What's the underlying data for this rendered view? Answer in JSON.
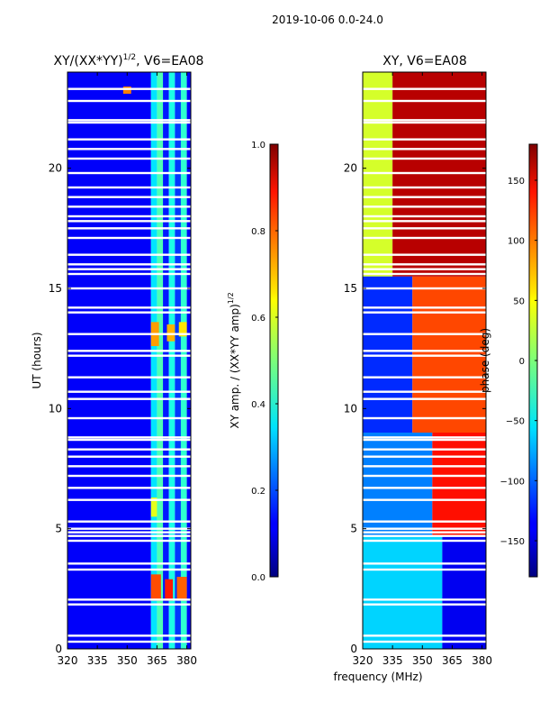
{
  "figure": {
    "suptitle": "2019-10-06 0.0-24.0",
    "xlabel": "frequency (MHz)"
  },
  "chart_data": [
    {
      "type": "heatmap",
      "title_main": "XY/(XX*YY)",
      "title_sup": "1/2",
      "title_tail": ", V6=EA08",
      "ylabel": "UT (hours)",
      "x_range": [
        320,
        382
      ],
      "y_range": [
        0,
        24
      ],
      "x_ticks": [
        320,
        335,
        350,
        365,
        380
      ],
      "y_ticks": [
        0,
        5,
        10,
        15,
        20
      ],
      "colorbar": {
        "label_main": "XY amp. / (XX*YY amp)",
        "label_sup": "1/2",
        "range": [
          0.0,
          1.0
        ],
        "ticks": [
          "0.0",
          "0.2",
          "0.4",
          "0.6",
          "0.8",
          "1.0"
        ],
        "tick_values": [
          0.0,
          0.2,
          0.4,
          0.6,
          0.8,
          1.0
        ]
      },
      "bands": [
        {
          "f0": 320,
          "f1": 362,
          "value": 0.12
        },
        {
          "f0": 362,
          "f1": 365,
          "value": 0.35
        },
        {
          "f0": 365,
          "f1": 368,
          "value": 0.45
        },
        {
          "f0": 368,
          "f1": 371,
          "value": 0.15
        },
        {
          "f0": 371,
          "f1": 374,
          "value": 0.4
        },
        {
          "f0": 374,
          "f1": 377,
          "value": 0.18
        },
        {
          "f0": 377,
          "f1": 380,
          "value": 0.42
        },
        {
          "f0": 380,
          "f1": 382,
          "value": 0.12
        }
      ],
      "hot_spots": [
        {
          "f0": 362,
          "f1": 367,
          "t0": 2.0,
          "t1": 3.1,
          "value": 0.8
        },
        {
          "f0": 369,
          "f1": 373,
          "t0": 2.0,
          "t1": 2.9,
          "value": 0.85
        },
        {
          "f0": 375,
          "f1": 380,
          "t0": 2.0,
          "t1": 3.0,
          "value": 0.78
        },
        {
          "f0": 362,
          "f1": 366,
          "t0": 12.6,
          "t1": 13.6,
          "value": 0.72
        },
        {
          "f0": 370,
          "f1": 374,
          "t0": 12.8,
          "t1": 13.5,
          "value": 0.7
        },
        {
          "f0": 376,
          "f1": 380,
          "t0": 13.0,
          "t1": 13.6,
          "value": 0.65
        },
        {
          "f0": 362,
          "f1": 365,
          "t0": 5.5,
          "t1": 6.3,
          "value": 0.6
        },
        {
          "f0": 348,
          "f1": 352,
          "t0": 23.1,
          "t1": 23.4,
          "value": 0.75
        }
      ]
    },
    {
      "type": "heatmap",
      "title": "XY, V6=EA08",
      "ylabel": "",
      "x_range": [
        320,
        382
      ],
      "y_range": [
        0,
        24
      ],
      "x_ticks": [
        320,
        335,
        350,
        365,
        380
      ],
      "y_ticks": [
        0,
        5,
        10,
        15,
        20
      ],
      "colorbar": {
        "label": "phase (deg)",
        "range": [
          -180,
          180
        ],
        "ticks": [
          "−150",
          "−100",
          "−50",
          "0",
          "50",
          "100",
          "150"
        ],
        "tick_values": [
          -150,
          -100,
          -50,
          0,
          50,
          100,
          150
        ]
      },
      "regions": [
        {
          "t0": 0,
          "t1": 4.7,
          "f0": 320,
          "f1": 360,
          "value": -60
        },
        {
          "t0": 0,
          "t1": 4.7,
          "f0": 360,
          "f1": 382,
          "value": -140
        },
        {
          "t0": 4.7,
          "t1": 9.0,
          "f0": 320,
          "f1": 355,
          "value": -90
        },
        {
          "t0": 4.7,
          "t1": 9.0,
          "f0": 355,
          "f1": 382,
          "value": 130
        },
        {
          "t0": 9.0,
          "t1": 15.5,
          "f0": 320,
          "f1": 345,
          "value": -120
        },
        {
          "t0": 9.0,
          "t1": 15.5,
          "f0": 345,
          "f1": 382,
          "value": 110
        },
        {
          "t0": 15.5,
          "t1": 24,
          "f0": 320,
          "f1": 335,
          "value": 30
        },
        {
          "t0": 15.5,
          "t1": 24,
          "f0": 335,
          "f1": 382,
          "value": 160
        }
      ]
    }
  ]
}
